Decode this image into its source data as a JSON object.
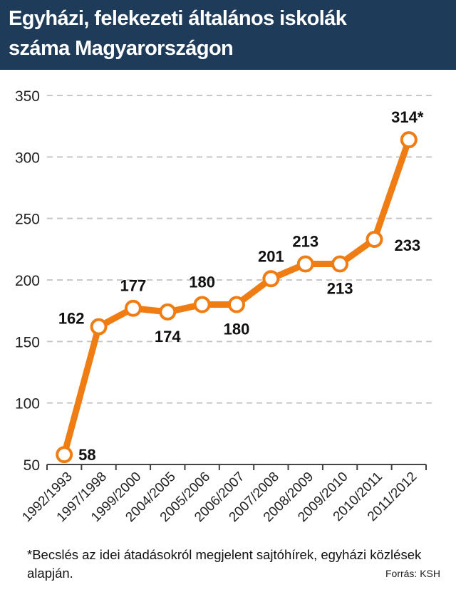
{
  "header": {
    "title_line1": "Egyházi, felekezeti általános iskolák",
    "title_line2": "száma Magyarországon"
  },
  "chart_data": {
    "type": "line",
    "title": "Egyházi, felekezeti általános iskolák száma Magyarországon",
    "xlabel": "",
    "ylabel": "",
    "categories": [
      "1992/1993",
      "1997/1998",
      "1999/2000",
      "2004/2005",
      "2005/2006",
      "2006/2007",
      "2007/2008",
      "2008/2009",
      "2009/2010",
      "2010/2011",
      "2011/2012"
    ],
    "values": [
      58,
      162,
      177,
      174,
      180,
      180,
      201,
      213,
      213,
      233,
      314
    ],
    "data_labels": [
      "58",
      "162",
      "177",
      "174",
      "180",
      "180",
      "201",
      "213",
      "213",
      "233",
      "314*"
    ],
    "label_side": [
      "right",
      "left",
      "above",
      "below",
      "above",
      "below",
      "above",
      "above",
      "below",
      "right",
      "above"
    ],
    "ylim": [
      50,
      350
    ],
    "yticks": [
      "50",
      "100",
      "150",
      "200",
      "250",
      "300",
      "350"
    ],
    "grid": true,
    "colors": {
      "line": "#f07d14",
      "marker_fill": "#ffffff",
      "grid": "#c8c8c8",
      "header_bg": "#1e3b59"
    }
  },
  "footnote": "*Becslés az idei átadásokról megjelent sajtóhírek, egyházi közlések alapján.",
  "source": "Forrás: KSH"
}
